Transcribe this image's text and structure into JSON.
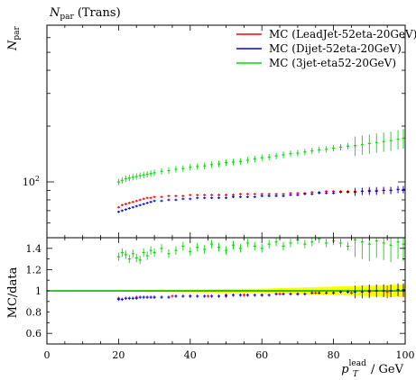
{
  "chart_data": [
    {
      "type": "scatter",
      "panel": "main",
      "title_symbol": "N",
      "title_sub": "par",
      "title_rest": "(Trans)",
      "ylabel_symbol": "N",
      "ylabel_sub": "par",
      "yscale": "log",
      "ylim": [
        50,
        700
      ],
      "xlim": [
        0,
        100
      ],
      "yticks": [
        {
          "value": 100,
          "base": "10",
          "exp": "2"
        }
      ],
      "legend_position": "top-right",
      "series": [
        {
          "name": "MC (LeadJet-52eta-20GeV)",
          "color": "#ff0000",
          "error": 0.015,
          "x": [
            20,
            21,
            22,
            23,
            24,
            25,
            26,
            27,
            28,
            29,
            30,
            32,
            34,
            36,
            38,
            40,
            42,
            44,
            46,
            48,
            50,
            52,
            54,
            56,
            58,
            60,
            62,
            64,
            66,
            68,
            70,
            72,
            74,
            76,
            78,
            80,
            82,
            84,
            86,
            88,
            90,
            92,
            94,
            96,
            98,
            99.5
          ],
          "y": [
            73,
            75,
            76,
            77,
            78,
            79,
            80,
            81,
            82,
            82,
            83,
            83,
            84,
            84,
            84,
            85,
            85,
            85,
            85,
            85,
            85,
            85,
            86,
            86,
            86,
            86,
            86,
            86,
            86,
            87,
            87,
            87,
            88,
            88,
            89,
            89,
            89,
            89,
            89,
            89,
            90,
            90,
            90,
            90,
            91,
            91
          ]
        },
        {
          "name": "MC (Dijet-52eta-20GeV)",
          "color": "#0000ff",
          "error": 0.015,
          "x": [
            20,
            21,
            22,
            23,
            24,
            25,
            26,
            27,
            28,
            29,
            30,
            32,
            34,
            36,
            38,
            40,
            42,
            44,
            46,
            48,
            50,
            52,
            54,
            56,
            58,
            60,
            62,
            64,
            66,
            68,
            70,
            72,
            74,
            76,
            78,
            80,
            82,
            84,
            86,
            88,
            90,
            92,
            94,
            96,
            98,
            99.5
          ],
          "y": [
            69,
            70,
            71,
            72,
            73,
            74,
            75,
            76,
            77,
            78,
            79,
            79,
            80,
            80,
            81,
            81,
            82,
            82,
            82,
            82,
            82,
            83,
            83,
            83,
            83,
            84,
            84,
            84,
            84,
            85,
            85,
            86,
            86,
            87,
            87,
            87,
            88,
            88,
            88,
            89,
            89,
            89,
            90,
            90,
            91,
            91
          ]
        },
        {
          "name": "MC (3jet-eta52-20GeV)",
          "color": "#00dd00",
          "error": 0.04,
          "x": [
            20,
            21,
            22,
            23,
            24,
            25,
            26,
            27,
            28,
            29,
            30,
            32,
            34,
            36,
            38,
            40,
            42,
            44,
            46,
            48,
            50,
            52,
            54,
            56,
            58,
            60,
            62,
            64,
            66,
            68,
            70,
            72,
            74,
            76,
            78,
            80,
            82,
            84,
            86,
            88,
            90,
            92,
            94,
            96,
            98,
            99.5
          ],
          "y": [
            100,
            102,
            104,
            105,
            106,
            107,
            108,
            109,
            110,
            111,
            112,
            114,
            115,
            117,
            118,
            120,
            121,
            122,
            124,
            125,
            127,
            128,
            129,
            131,
            133,
            135,
            136,
            138,
            140,
            142,
            143,
            145,
            147,
            149,
            150,
            152,
            154,
            156,
            157,
            159,
            161,
            163,
            165,
            167,
            170,
            172
          ]
        }
      ]
    },
    {
      "type": "scatter",
      "panel": "ratio",
      "ylabel": "MC/data",
      "xlabel_symbol": "p",
      "xlabel_sub": "T",
      "xlabel_sup": "lead",
      "xlabel_unit": " / GeV",
      "ylim": [
        0.5,
        1.5
      ],
      "xlim": [
        0,
        100
      ],
      "yticks": [
        0.6,
        0.8,
        1,
        1.2,
        1.4
      ],
      "xticks": [
        0,
        20,
        40,
        60,
        80,
        100
      ],
      "reference": {
        "value": 1,
        "color": "#00aa00"
      },
      "band_color": "#ffff00",
      "series": [
        {
          "name": "MC (LeadJet-52eta-20GeV)",
          "color": "#ff0000",
          "x": [
            20,
            25,
            30,
            35,
            40,
            45,
            50,
            55,
            60,
            65,
            70,
            75,
            80,
            85,
            90,
            95,
            99.5
          ],
          "y": [
            0.93,
            0.94,
            0.94,
            0.95,
            0.95,
            0.95,
            0.96,
            0.96,
            0.96,
            0.97,
            0.97,
            0.98,
            0.98,
            0.98,
            0.99,
            0.99,
            1.0
          ]
        },
        {
          "name": "MC (Dijet-52eta-20GeV)",
          "color": "#0000ff",
          "x": [
            20,
            21,
            22,
            23,
            24,
            25,
            26,
            27,
            28,
            29,
            30,
            32,
            34,
            36,
            38,
            40,
            42,
            44,
            46,
            48,
            50,
            52,
            54,
            56,
            58,
            60,
            62,
            64,
            66,
            68,
            70,
            72,
            74,
            76,
            78,
            80,
            82,
            84,
            86,
            88,
            90,
            92,
            94,
            96,
            98,
            99.5
          ],
          "y": [
            0.92,
            0.92,
            0.93,
            0.93,
            0.93,
            0.93,
            0.94,
            0.94,
            0.94,
            0.94,
            0.94,
            0.94,
            0.94,
            0.95,
            0.95,
            0.95,
            0.95,
            0.95,
            0.95,
            0.95,
            0.95,
            0.96,
            0.96,
            0.96,
            0.96,
            0.96,
            0.96,
            0.97,
            0.97,
            0.97,
            0.97,
            0.97,
            0.98,
            0.98,
            0.98,
            0.98,
            0.99,
            0.99,
            0.99,
            0.99,
            1.0,
            1.0,
            1.0,
            1.0,
            1.01,
            1.01
          ]
        },
        {
          "name": "MC (3jet-eta52-20GeV)",
          "color": "#00dd00",
          "x": [
            20,
            21,
            22,
            23,
            24,
            25,
            26,
            27,
            28,
            29,
            30,
            32,
            34,
            36,
            38,
            40,
            42,
            44,
            46,
            48,
            50,
            52,
            54,
            56,
            58,
            60,
            62,
            64,
            66,
            68,
            70,
            72,
            74,
            76,
            78,
            80,
            82,
            84,
            86,
            88,
            90,
            92,
            94,
            96,
            98,
            99.5
          ],
          "y": [
            1.32,
            1.36,
            1.34,
            1.3,
            1.35,
            1.31,
            1.29,
            1.36,
            1.33,
            1.38,
            1.36,
            1.4,
            1.35,
            1.38,
            1.42,
            1.37,
            1.41,
            1.39,
            1.44,
            1.41,
            1.38,
            1.43,
            1.4,
            1.45,
            1.42,
            1.4,
            1.44,
            1.46,
            1.42,
            1.45,
            1.48,
            1.44,
            1.46,
            1.49,
            1.45,
            1.47,
            1.45,
            1.42,
            1.48,
            1.46,
            1.44,
            1.47,
            1.45,
            1.43,
            1.46,
            1.44
          ]
        }
      ]
    }
  ]
}
